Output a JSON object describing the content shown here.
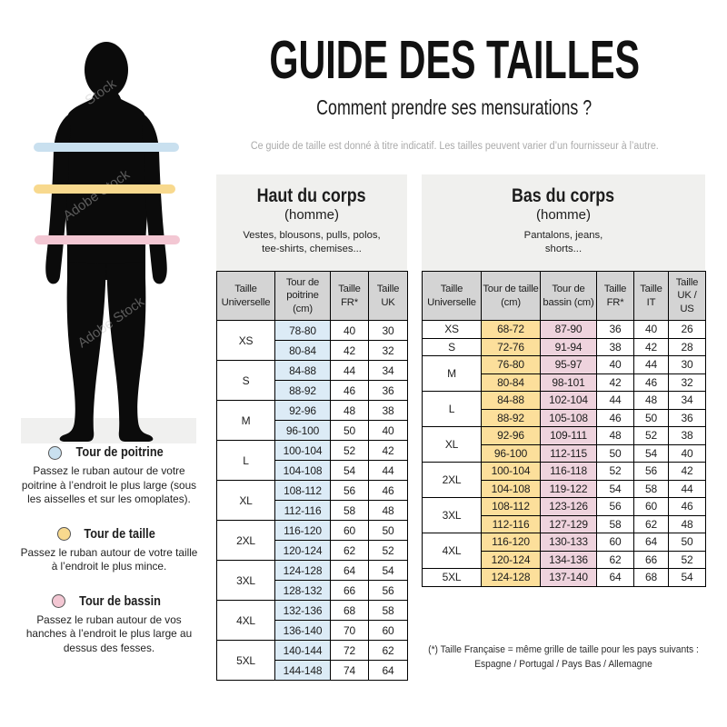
{
  "title": "GUIDE DES TAILLES",
  "subtitle": "Comment prendre ses mensurations ?",
  "disclaimer": "Ce guide de taille est donné à titre indicatif. Les tailles peuvent varier d’un fournisseur à l’autre.",
  "watermark": {
    "text": "Adobe Stock",
    "short": "Stock"
  },
  "colors": {
    "chest_band": "#c9e0ef",
    "waist_band": "#f8d98e",
    "hips_band": "#f3c7d3",
    "cell_blue": "#dcebf6",
    "cell_yellow": "#fcdf9b",
    "cell_pink": "#eed3dd",
    "header_cell": "#d4d4d4",
    "panel_bg": "#f0f0ee",
    "pedestal": "#f0f0ef",
    "silhouette": "#0b0b0b"
  },
  "legend": [
    {
      "label": "Tour de poitrine",
      "description": "Passez le ruban autour de votre poitrine à l’endroit le plus large (sous les aisselles et sur les omoplates)."
    },
    {
      "label": "Tour de taille",
      "description": "Passez le ruban autour de votre taille à l’endroit le plus mince."
    },
    {
      "label": "Tour de bassin",
      "description": "Passez le ruban autour de vos hanches à l’endroit le plus large au dessus des fesses."
    }
  ],
  "upper_table": {
    "title": "Haut du corps",
    "subtitle": "(homme)",
    "items": [
      "Vestes, blousons, pulls, polos,",
      "tee-shirts, chemises..."
    ],
    "columns": [
      "Taille Universelle",
      "Tour de poitrine (cm)",
      "Taille FR*",
      "Taille UK"
    ],
    "groups": [
      {
        "size": "XS",
        "rows": [
          [
            "78-80",
            "40",
            "30"
          ],
          [
            "80-84",
            "42",
            "32"
          ]
        ]
      },
      {
        "size": "S",
        "rows": [
          [
            "84-88",
            "44",
            "34"
          ],
          [
            "88-92",
            "46",
            "36"
          ]
        ]
      },
      {
        "size": "M",
        "rows": [
          [
            "92-96",
            "48",
            "38"
          ],
          [
            "96-100",
            "50",
            "40"
          ]
        ]
      },
      {
        "size": "L",
        "rows": [
          [
            "100-104",
            "52",
            "42"
          ],
          [
            "104-108",
            "54",
            "44"
          ]
        ]
      },
      {
        "size": "XL",
        "rows": [
          [
            "108-112",
            "56",
            "46"
          ],
          [
            "112-116",
            "58",
            "48"
          ]
        ]
      },
      {
        "size": "2XL",
        "rows": [
          [
            "116-120",
            "60",
            "50"
          ],
          [
            "120-124",
            "62",
            "52"
          ]
        ]
      },
      {
        "size": "3XL",
        "rows": [
          [
            "124-128",
            "64",
            "54"
          ],
          [
            "128-132",
            "66",
            "56"
          ]
        ]
      },
      {
        "size": "4XL",
        "rows": [
          [
            "132-136",
            "68",
            "58"
          ],
          [
            "136-140",
            "70",
            "60"
          ]
        ]
      },
      {
        "size": "5XL",
        "rows": [
          [
            "140-144",
            "72",
            "62"
          ],
          [
            "144-148",
            "74",
            "64"
          ]
        ]
      }
    ]
  },
  "lower_table": {
    "title": "Bas du corps",
    "subtitle": "(homme)",
    "items": [
      "Pantalons, jeans,",
      "shorts..."
    ],
    "columns": [
      "Taille Universelle",
      "Tour de taille (cm)",
      "Tour de bassin (cm)",
      "Taille FR*",
      "Taille IT",
      "Taille UK / US"
    ],
    "groups": [
      {
        "size": "XS",
        "rows": [
          [
            "68-72",
            "87-90",
            "36",
            "40",
            "26"
          ]
        ]
      },
      {
        "size": "S",
        "rows": [
          [
            "72-76",
            "91-94",
            "38",
            "42",
            "28"
          ]
        ]
      },
      {
        "size": "M",
        "rows": [
          [
            "76-80",
            "95-97",
            "40",
            "44",
            "30"
          ],
          [
            "80-84",
            "98-101",
            "42",
            "46",
            "32"
          ]
        ]
      },
      {
        "size": "L",
        "rows": [
          [
            "84-88",
            "102-104",
            "44",
            "48",
            "34"
          ],
          [
            "88-92",
            "105-108",
            "46",
            "50",
            "36"
          ]
        ]
      },
      {
        "size": "XL",
        "rows": [
          [
            "92-96",
            "109-111",
            "48",
            "52",
            "38"
          ],
          [
            "96-100",
            "112-115",
            "50",
            "54",
            "40"
          ]
        ]
      },
      {
        "size": "2XL",
        "rows": [
          [
            "100-104",
            "116-118",
            "52",
            "56",
            "42"
          ],
          [
            "104-108",
            "119-122",
            "54",
            "58",
            "44"
          ]
        ]
      },
      {
        "size": "3XL",
        "rows": [
          [
            "108-112",
            "123-126",
            "56",
            "60",
            "46"
          ],
          [
            "112-116",
            "127-129",
            "58",
            "62",
            "48"
          ]
        ]
      },
      {
        "size": "4XL",
        "rows": [
          [
            "116-120",
            "130-133",
            "60",
            "64",
            "50"
          ],
          [
            "120-124",
            "134-136",
            "62",
            "66",
            "52"
          ]
        ]
      },
      {
        "size": "5XL",
        "rows": [
          [
            "124-128",
            "137-140",
            "64",
            "68",
            "54"
          ]
        ]
      }
    ]
  },
  "footnote": {
    "line1": "(*) Taille Française = même grille de taille pour les pays suivants :",
    "line2": "Espagne / Portugal / Pays Bas / Allemagne"
  }
}
